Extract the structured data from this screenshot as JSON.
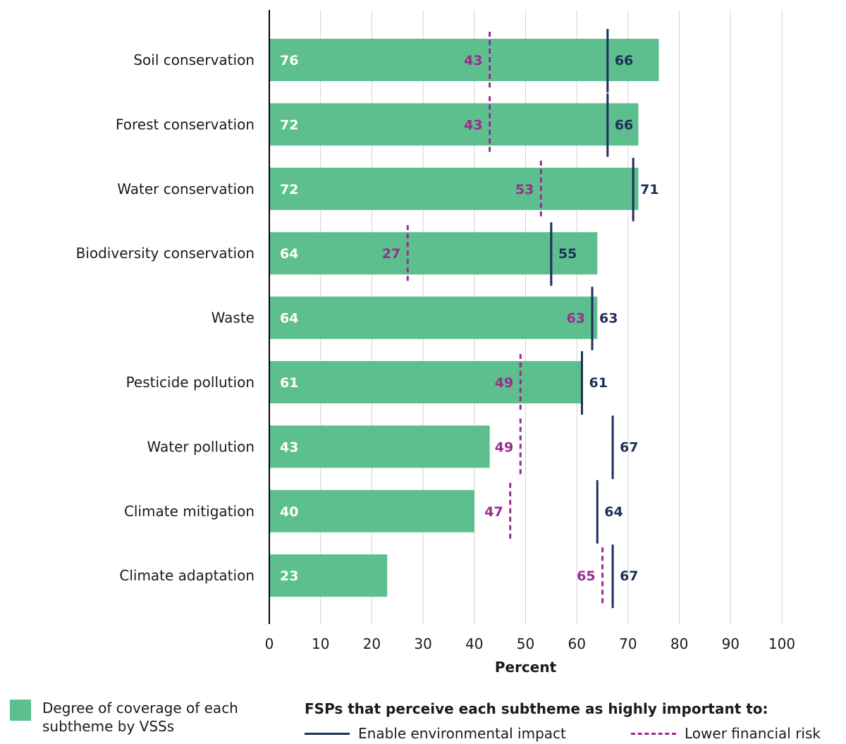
{
  "colors": {
    "bar": "#5cbf8d",
    "bar_label": "#ffffff",
    "impact": "#1e2f5a",
    "risk": "#9a2c8f",
    "axis": "#000000",
    "grid": "#d3d3d3",
    "text": "#1a1a1a"
  },
  "chart_data": {
    "type": "bar",
    "orientation": "horizontal",
    "xlabel": "Percent",
    "ylabel": "",
    "xlim": [
      0,
      100
    ],
    "xticks": [
      0,
      10,
      20,
      30,
      40,
      50,
      60,
      70,
      80,
      90,
      100
    ],
    "grid": "vertical",
    "categories": [
      "Soil conservation",
      "Forest conservation",
      "Water conservation",
      "Biodiversity conservation",
      "Waste",
      "Pesticide pollution",
      "Water pollution",
      "Climate mitigation",
      "Climate adaptation"
    ],
    "series": [
      {
        "name": "Degree of coverage of each subtheme by VSSs",
        "kind": "bar",
        "values": [
          76,
          72,
          72,
          64,
          64,
          61,
          43,
          40,
          23
        ]
      },
      {
        "name": "Enable environmental impact",
        "kind": "marker-solid",
        "values": [
          66,
          66,
          71,
          55,
          63,
          61,
          67,
          64,
          67
        ]
      },
      {
        "name": "Lower financial risk",
        "kind": "marker-dashed",
        "values": [
          43,
          43,
          53,
          27,
          63,
          49,
          49,
          47,
          65
        ]
      }
    ]
  },
  "legend": {
    "coverage_label": "Degree of coverage of each subtheme by VSSs",
    "fsp_title": "FSPs that perceive each subtheme as highly important to:",
    "impact_label": "Enable environmental impact",
    "risk_label": "Lower financial risk"
  }
}
